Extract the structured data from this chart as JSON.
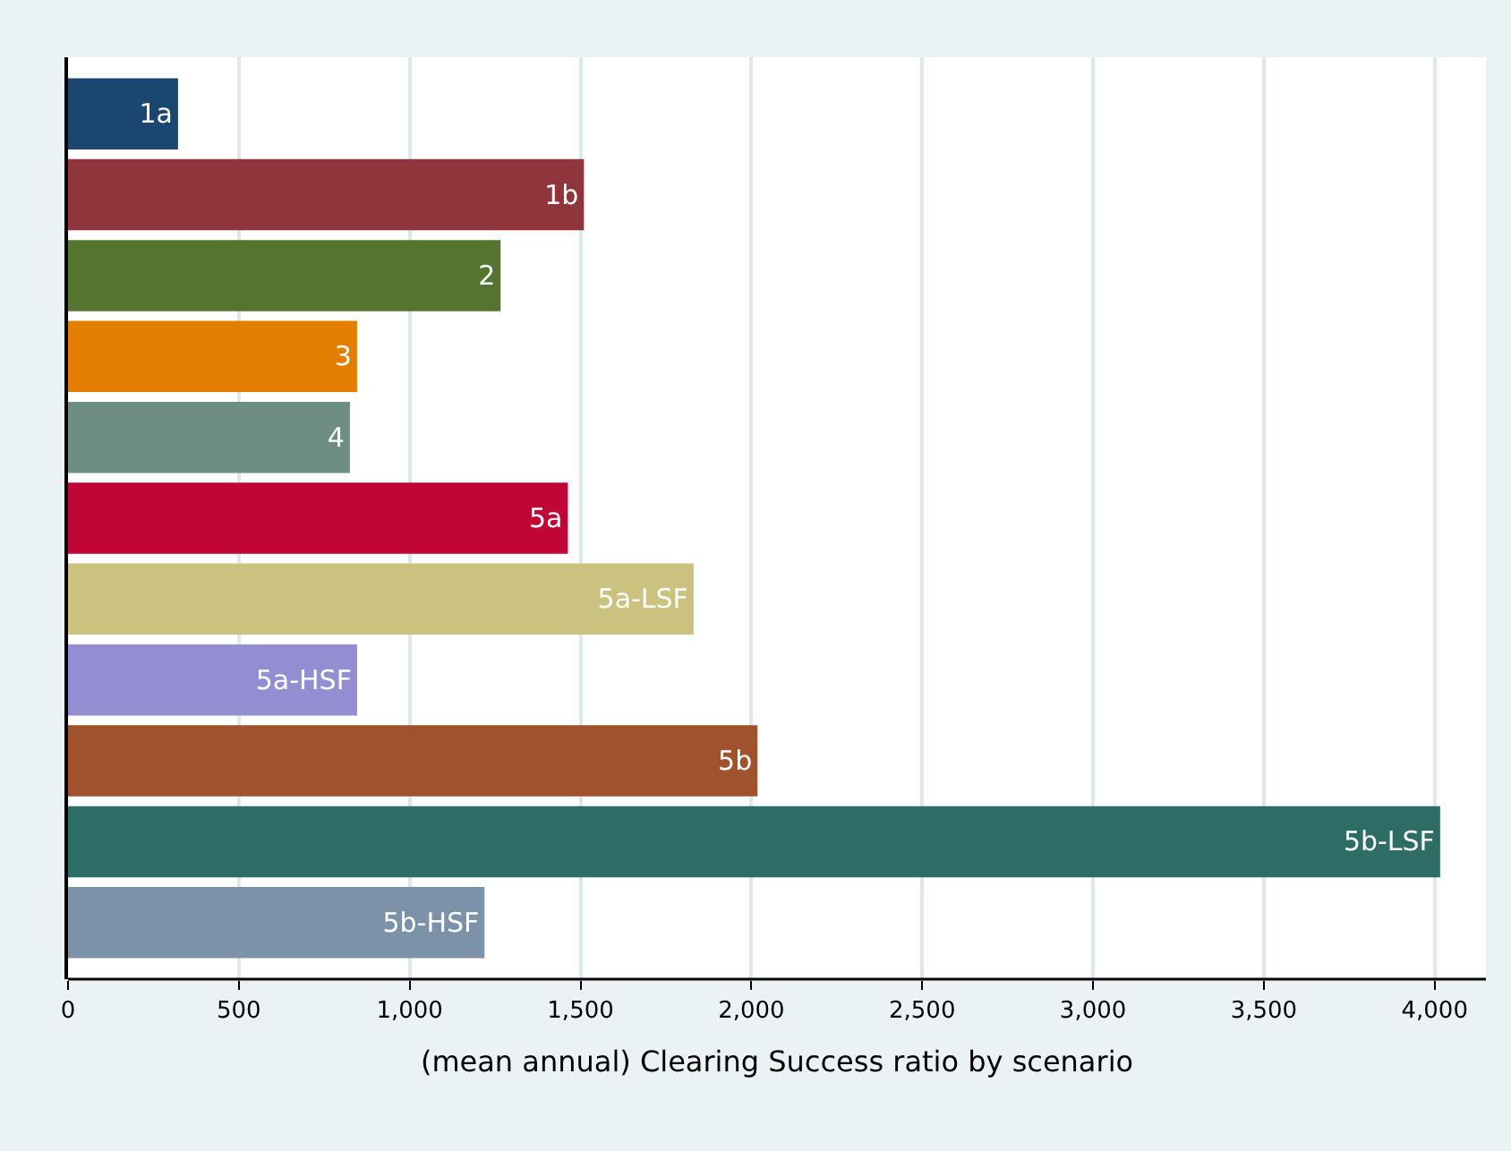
{
  "chart_data": {
    "type": "bar",
    "orientation": "horizontal",
    "categories": [
      "1a",
      "1b",
      "2",
      "3",
      "4",
      "5a",
      "5a-LSF",
      "5a-HSF",
      "5b",
      "5b-LSF",
      "5b-HSF"
    ],
    "values": [
      322,
      1510,
      1266,
      846,
      825,
      1463,
      1831,
      846,
      2018,
      4016,
      1219
    ],
    "colors": [
      "#1a476f",
      "#90353b",
      "#55752f",
      "#e37e00",
      "#6e8e84",
      "#c10534",
      "#cac27e",
      "#938dd2",
      "#a0522d",
      "#2d6d66",
      "#7b92a8"
    ],
    "xlabel": "(mean annual) Clearing Success ratio by scenario",
    "xlim": [
      0,
      4150
    ],
    "xticks": [
      0,
      500,
      {
        "value": 1000,
        "label": "1,000"
      },
      {
        "value": 1500,
        "label": "1,500"
      },
      {
        "value": 2000,
        "label": "2,000"
      },
      {
        "value": 2500,
        "label": "2,500"
      },
      {
        "value": 3000,
        "label": "3,000"
      },
      {
        "value": 3500,
        "label": "3,500"
      },
      {
        "value": 4000,
        "label": "4,000"
      }
    ],
    "grid": "x",
    "tick_labels": "x"
  }
}
